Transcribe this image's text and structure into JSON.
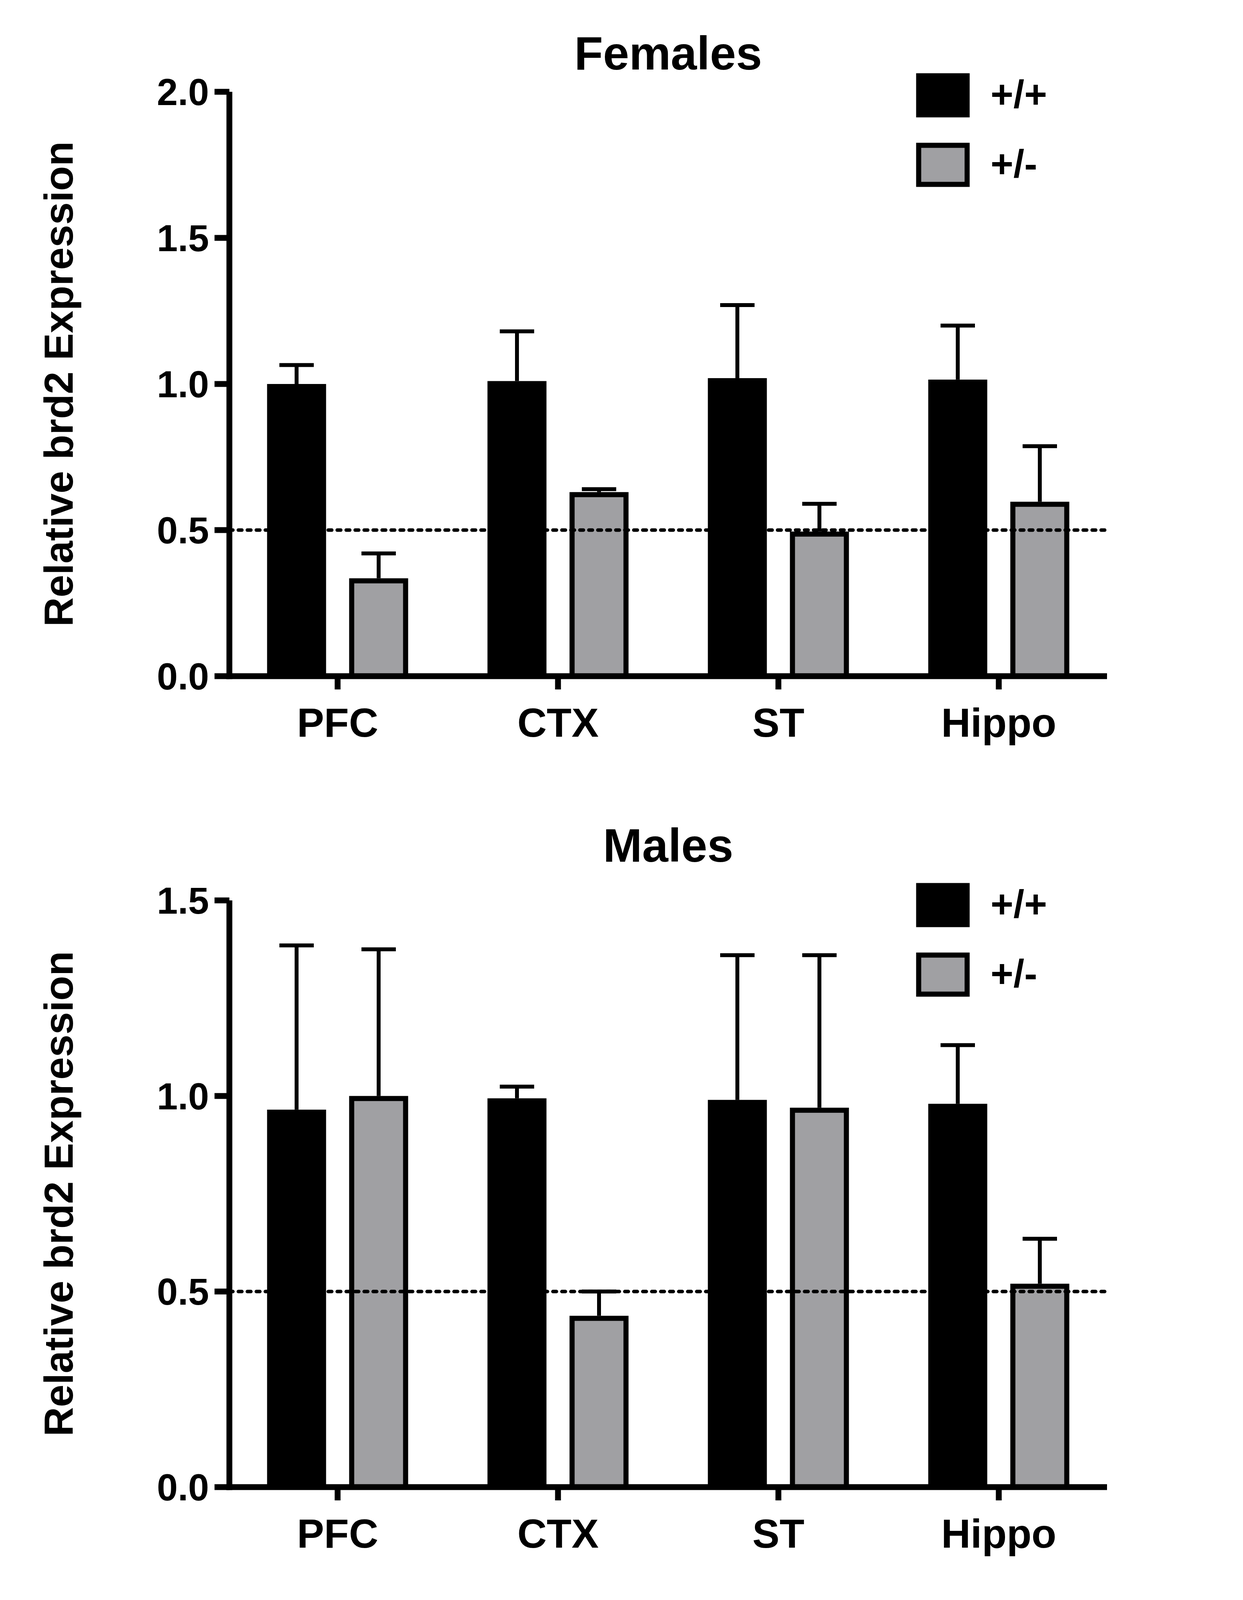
{
  "chart_data": [
    {
      "type": "bar",
      "title": "Females",
      "y_label": "Relative brd2 Expression",
      "categories": [
        "PFC",
        "CTX",
        "ST",
        "Hippo"
      ],
      "series": [
        {
          "name": "+/+",
          "color": "#000000",
          "values": [
            1.0,
            1.01,
            1.02,
            1.015
          ],
          "errors": [
            0.065,
            0.17,
            0.25,
            0.185
          ]
        },
        {
          "name": "+/-",
          "color": "#a0a0a3",
          "values": [
            0.335,
            0.63,
            0.495,
            0.597
          ],
          "errors": [
            0.085,
            0.01,
            0.095,
            0.19
          ]
        }
      ],
      "ylim": [
        0,
        2
      ],
      "yticks": [
        {
          "value": 0,
          "label": "0.0"
        },
        0.5,
        {
          "value": 1,
          "label": "1.0"
        },
        1.5,
        {
          "value": 2,
          "label": "2.0"
        }
      ],
      "reference_line": 0.5,
      "legend": "top-right"
    },
    {
      "type": "bar",
      "title": "Males",
      "y_label": "Relative brd2 Expression",
      "categories": [
        "PFC",
        "CTX",
        "ST",
        "Hippo"
      ],
      "series": [
        {
          "name": "+/+",
          "color": "#000000",
          "values": [
            0.965,
            0.994,
            0.99,
            0.98
          ],
          "errors": [
            0.42,
            0.03,
            0.37,
            0.15
          ]
        },
        {
          "name": "+/-",
          "color": "#a0a0a3",
          "values": [
            1.0,
            0.438,
            0.97,
            0.52
          ],
          "errors": [
            0.375,
            0.062,
            0.39,
            0.115
          ]
        }
      ],
      "ylim": [
        0,
        1.5
      ],
      "yticks": [
        {
          "value": 0,
          "label": "0.0"
        },
        0.5,
        {
          "value": 1,
          "label": "1.0"
        },
        1.5
      ],
      "reference_line": 0.5,
      "legend": "top-right"
    }
  ]
}
